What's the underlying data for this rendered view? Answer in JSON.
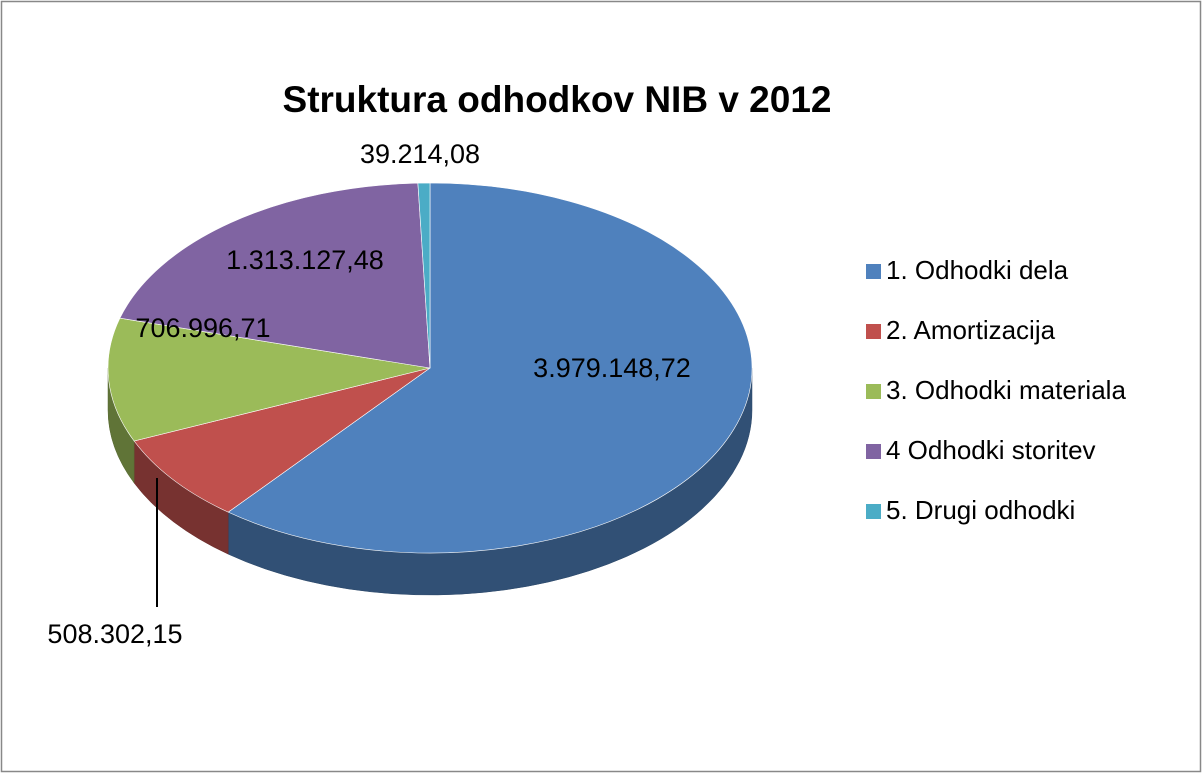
{
  "chart_data": {
    "type": "pie",
    "title": "Struktura odhodkov  NIB v 2012",
    "categories": [
      "1. Odhodki dela",
      "2. Amortizacija",
      "3. Odhodki materiala",
      "4 Odhodki storitev",
      "5. Drugi odhodki"
    ],
    "values": [
      3979148.72,
      508302.15,
      706996.71,
      1313127.48,
      39214.08
    ],
    "value_labels": [
      "3.979.148,72",
      "508.302,15",
      "706.996,71",
      "1.313.127,48",
      "39.214,08"
    ],
    "colors": [
      "#4f81bd",
      "#c0504d",
      "#9bbb59",
      "#8064a2",
      "#4bacc6"
    ],
    "legend": "right"
  }
}
